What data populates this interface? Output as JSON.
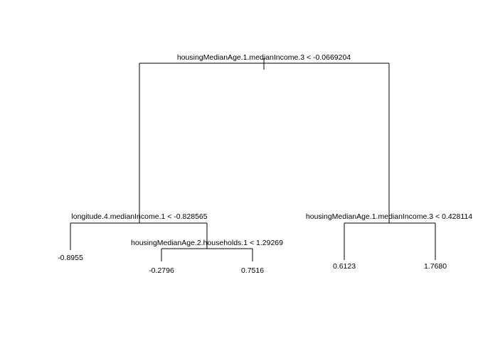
{
  "tree": {
    "root_split": "housingMedianAge.1.medianIncome.3 < -0.0669204",
    "left_split": "longitude.4.medianIncome.1 < -0.828565",
    "left_right_split": "housingMedianAge.2.households.1 < 1.29269",
    "right_split": "housingMedianAge.1.medianIncome.3 < 0.428114",
    "leaves": {
      "l": "-0.8955",
      "lrl": "-0.2796",
      "lrr": "0.7516",
      "rl": "0.6123",
      "rr": "1.7680"
    }
  }
}
